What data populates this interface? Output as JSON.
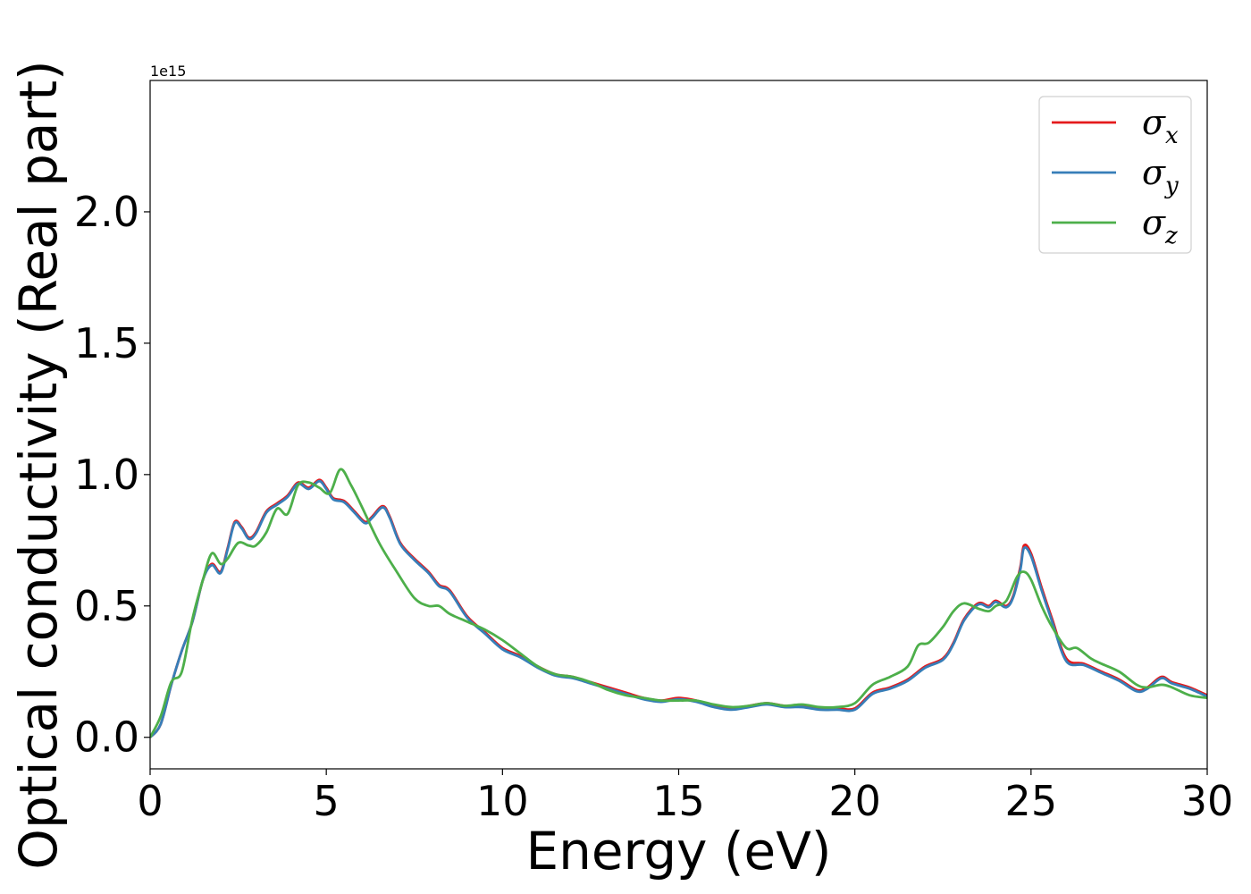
{
  "chart_data": {
    "type": "line",
    "xlabel": "Energy (eV)",
    "ylabel": "Optical conductivity (Real part)",
    "y_offset_text": "1e15",
    "xlim": [
      0,
      30
    ],
    "ylim": [
      -0.12,
      2.5
    ],
    "x_ticks": [
      0,
      5,
      10,
      15,
      20,
      25,
      30
    ],
    "x_tick_labels": [
      "0",
      "5",
      "10",
      "15",
      "20",
      "25",
      "30"
    ],
    "y_ticks": [
      0.0,
      0.5,
      1.0,
      1.5,
      2.0
    ],
    "y_tick_labels": [
      "0.0",
      "0.5",
      "1.0",
      "1.5",
      "2.0"
    ],
    "grid": false,
    "legend_position": "top-right",
    "series": [
      {
        "name": "σx",
        "legend_symbol": "σ",
        "legend_subscript": "x",
        "color": "#e41a1c",
        "x": [
          0,
          0.3,
          0.6,
          0.9,
          1.2,
          1.5,
          1.75,
          2.0,
          2.2,
          2.4,
          2.6,
          2.8,
          3.0,
          3.3,
          3.6,
          3.9,
          4.2,
          4.5,
          4.8,
          5.0,
          5.2,
          5.5,
          5.8,
          6.1,
          6.3,
          6.6,
          6.8,
          7.1,
          7.5,
          7.9,
          8.2,
          8.5,
          9.0,
          9.5,
          10.0,
          10.5,
          11.0,
          11.5,
          12.0,
          12.5,
          13.0,
          13.5,
          14.0,
          14.5,
          15.0,
          15.5,
          16.0,
          16.5,
          17.0,
          17.5,
          18.0,
          18.5,
          19.0,
          19.5,
          20.0,
          20.5,
          21.0,
          21.5,
          22.0,
          22.5,
          22.8,
          23.1,
          23.5,
          23.8,
          24.0,
          24.3,
          24.5,
          24.7,
          24.8,
          25.0,
          25.3,
          25.6,
          26.0,
          26.5,
          27.0,
          27.5,
          28.0,
          28.3,
          28.7,
          29.0,
          29.5,
          30.0
        ],
        "y": [
          0.0,
          0.05,
          0.2,
          0.33,
          0.44,
          0.6,
          0.66,
          0.63,
          0.72,
          0.82,
          0.8,
          0.76,
          0.78,
          0.86,
          0.89,
          0.92,
          0.97,
          0.95,
          0.98,
          0.95,
          0.91,
          0.9,
          0.86,
          0.82,
          0.84,
          0.88,
          0.84,
          0.74,
          0.68,
          0.63,
          0.58,
          0.56,
          0.46,
          0.4,
          0.34,
          0.31,
          0.27,
          0.24,
          0.23,
          0.21,
          0.19,
          0.17,
          0.15,
          0.14,
          0.15,
          0.14,
          0.12,
          0.11,
          0.12,
          0.13,
          0.12,
          0.12,
          0.11,
          0.11,
          0.11,
          0.17,
          0.19,
          0.22,
          0.27,
          0.3,
          0.36,
          0.45,
          0.51,
          0.5,
          0.52,
          0.5,
          0.54,
          0.65,
          0.73,
          0.7,
          0.57,
          0.45,
          0.3,
          0.28,
          0.25,
          0.22,
          0.18,
          0.19,
          0.23,
          0.21,
          0.19,
          0.16
        ]
      },
      {
        "name": "σy",
        "legend_symbol": "σ",
        "legend_subscript": "y",
        "color": "#377eb8",
        "x": [
          0,
          0.3,
          0.6,
          0.9,
          1.2,
          1.5,
          1.75,
          2.0,
          2.2,
          2.4,
          2.6,
          2.8,
          3.0,
          3.3,
          3.6,
          3.9,
          4.2,
          4.5,
          4.8,
          5.0,
          5.2,
          5.5,
          5.8,
          6.1,
          6.3,
          6.6,
          6.8,
          7.1,
          7.5,
          7.9,
          8.2,
          8.5,
          9.0,
          9.5,
          10.0,
          10.5,
          11.0,
          11.5,
          12.0,
          12.5,
          13.0,
          13.5,
          14.0,
          14.5,
          15.0,
          15.5,
          16.0,
          16.5,
          17.0,
          17.5,
          18.0,
          18.5,
          19.0,
          19.5,
          20.0,
          20.5,
          21.0,
          21.5,
          22.0,
          22.5,
          22.8,
          23.1,
          23.5,
          23.8,
          24.0,
          24.3,
          24.5,
          24.7,
          24.8,
          25.0,
          25.3,
          25.6,
          26.0,
          26.5,
          27.0,
          27.5,
          28.0,
          28.3,
          28.7,
          29.0,
          29.5,
          30.0
        ],
        "y": [
          0.0,
          0.05,
          0.2,
          0.33,
          0.44,
          0.6,
          0.655,
          0.625,
          0.715,
          0.815,
          0.795,
          0.755,
          0.775,
          0.855,
          0.885,
          0.915,
          0.965,
          0.945,
          0.975,
          0.945,
          0.905,
          0.895,
          0.855,
          0.815,
          0.835,
          0.875,
          0.835,
          0.735,
          0.675,
          0.625,
          0.575,
          0.555,
          0.455,
          0.395,
          0.335,
          0.305,
          0.265,
          0.235,
          0.225,
          0.205,
          0.185,
          0.165,
          0.145,
          0.135,
          0.145,
          0.135,
          0.115,
          0.105,
          0.115,
          0.125,
          0.115,
          0.115,
          0.105,
          0.105,
          0.105,
          0.165,
          0.185,
          0.215,
          0.265,
          0.295,
          0.355,
          0.445,
          0.505,
          0.495,
          0.515,
          0.495,
          0.535,
          0.64,
          0.72,
          0.69,
          0.56,
          0.44,
          0.29,
          0.275,
          0.245,
          0.215,
          0.175,
          0.185,
          0.225,
          0.205,
          0.185,
          0.155
        ]
      },
      {
        "name": "σz",
        "legend_symbol": "σ",
        "legend_subscript": "z",
        "color": "#4daf4a",
        "x": [
          0,
          0.3,
          0.6,
          0.9,
          1.2,
          1.5,
          1.75,
          2.0,
          2.2,
          2.5,
          2.8,
          3.0,
          3.3,
          3.6,
          3.9,
          4.2,
          4.5,
          4.8,
          5.1,
          5.4,
          5.7,
          6.0,
          6.5,
          7.0,
          7.5,
          7.9,
          8.2,
          8.5,
          9.0,
          9.5,
          10.0,
          10.5,
          11.0,
          11.5,
          12.0,
          12.5,
          13.0,
          13.5,
          14.0,
          14.5,
          15.0,
          15.5,
          16.0,
          16.5,
          17.0,
          17.5,
          18.0,
          18.5,
          19.0,
          19.5,
          20.0,
          20.5,
          21.0,
          21.5,
          21.8,
          22.1,
          22.5,
          22.8,
          23.1,
          23.5,
          23.8,
          24.0,
          24.3,
          24.6,
          24.8,
          25.0,
          25.3,
          25.6,
          26.0,
          26.3,
          26.7,
          27.0,
          27.5,
          28.0,
          28.3,
          28.7,
          29.0,
          29.5,
          30.0
        ],
        "y": [
          0.0,
          0.08,
          0.21,
          0.25,
          0.45,
          0.6,
          0.7,
          0.66,
          0.68,
          0.74,
          0.73,
          0.73,
          0.78,
          0.87,
          0.85,
          0.96,
          0.97,
          0.95,
          0.93,
          1.02,
          0.96,
          0.88,
          0.74,
          0.63,
          0.53,
          0.5,
          0.5,
          0.47,
          0.44,
          0.41,
          0.37,
          0.32,
          0.27,
          0.24,
          0.23,
          0.21,
          0.18,
          0.16,
          0.15,
          0.14,
          0.14,
          0.14,
          0.125,
          0.115,
          0.12,
          0.13,
          0.12,
          0.125,
          0.115,
          0.115,
          0.13,
          0.2,
          0.23,
          0.27,
          0.35,
          0.36,
          0.42,
          0.48,
          0.51,
          0.49,
          0.48,
          0.5,
          0.52,
          0.61,
          0.63,
          0.6,
          0.5,
          0.42,
          0.34,
          0.34,
          0.3,
          0.28,
          0.25,
          0.2,
          0.19,
          0.2,
          0.19,
          0.16,
          0.15
        ]
      }
    ]
  }
}
